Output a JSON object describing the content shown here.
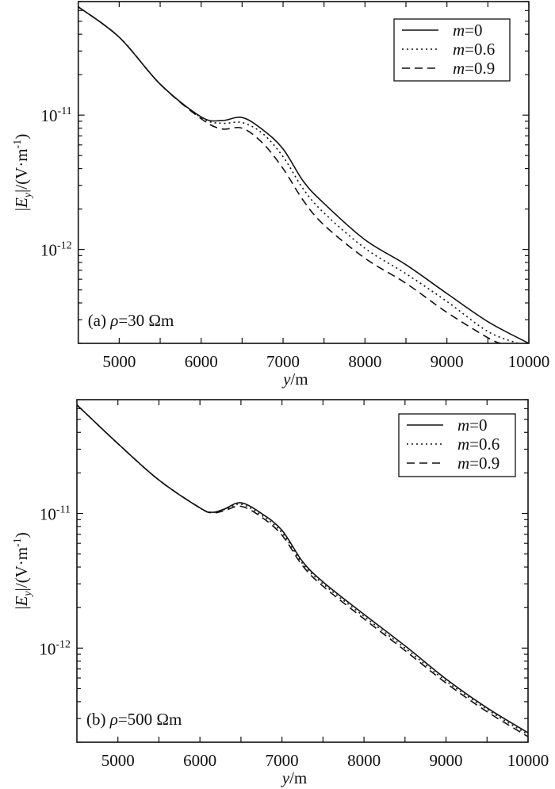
{
  "chart_data": [
    {
      "type": "line",
      "panel_label": {
        "prefix": "(a) ",
        "var": "ρ",
        "rest": "=30 Ωm"
      },
      "xlabel": {
        "var": "y",
        "rest": "/m"
      },
      "ylabel": {
        "pre": "|",
        "var": "E",
        "sub": "y",
        "mid": "|/(V·m",
        "sup": "-1",
        "post": ")"
      },
      "xlim": [
        4500,
        10000
      ],
      "ylim": [
        2e-13,
        7e-11
      ],
      "yscale": "log",
      "grid": false,
      "legend_position": "top-right",
      "xticks": [
        5000,
        6000,
        7000,
        8000,
        9000,
        10000
      ],
      "xtick_labels": [
        "5000",
        "6000",
        "7000",
        "8000",
        "9000",
        "10000"
      ],
      "yticks": [
        1e-11,
        1e-12
      ],
      "ytick_labels": [
        {
          "base": "10",
          "exp": "-11"
        },
        {
          "base": "10",
          "exp": "-12"
        }
      ],
      "series": [
        {
          "name": "m=0",
          "style": "solid",
          "x": [
            4500,
            5000,
            5500,
            6000,
            6250,
            6500,
            6750,
            7000,
            7250,
            7500,
            8000,
            8500,
            9000,
            9500,
            10000
          ],
          "y": [
            6.4e-11,
            3.8e-11,
            1.7e-11,
            9.7e-12,
            9.1e-12,
            9.6e-12,
            7.8e-12,
            5.6e-12,
            3.2e-12,
            2.2e-12,
            1.18e-12,
            7.7e-13,
            4.7e-13,
            2.9e-13,
            2e-13
          ]
        },
        {
          "name": "m=0.6",
          "style": "dotted",
          "x": [
            4500,
            5000,
            5500,
            6000,
            6250,
            6500,
            6750,
            7000,
            7250,
            7500,
            8000,
            8500,
            9000,
            9500,
            9870
          ],
          "y": [
            6.4e-11,
            3.8e-11,
            1.7e-11,
            9.6e-12,
            8.7e-12,
            8.8e-12,
            7.3e-12,
            4.9e-12,
            2.8e-12,
            1.87e-12,
            1.02e-12,
            6.6e-13,
            4.1e-13,
            2.45e-13,
            2e-13
          ]
        },
        {
          "name": "m=0.9",
          "style": "dashed",
          "x": [
            4500,
            5000,
            5500,
            6000,
            6250,
            6500,
            6750,
            7000,
            7250,
            7500,
            8000,
            8500,
            9000,
            9500,
            9650
          ],
          "y": [
            6.4e-11,
            3.8e-11,
            1.7e-11,
            9.4e-12,
            7.9e-12,
            8e-12,
            6.2e-12,
            4e-12,
            2.3e-12,
            1.52e-12,
            8.6e-13,
            5.6e-13,
            3.4e-13,
            2.2e-13,
            2e-13
          ]
        }
      ]
    },
    {
      "type": "line",
      "panel_label": {
        "prefix": "(b) ",
        "var": "ρ",
        "rest": "=500 Ωm"
      },
      "xlabel": {
        "var": "y",
        "rest": "/m"
      },
      "ylabel": {
        "pre": "|",
        "var": "E",
        "sub": "y",
        "mid": "|/(V·m",
        "sup": "-1",
        "post": ")"
      },
      "xlim": [
        4500,
        10000
      ],
      "ylim": [
        2e-13,
        7e-11
      ],
      "yscale": "log",
      "grid": false,
      "legend_position": "top-right",
      "xticks": [
        5000,
        6000,
        7000,
        8000,
        9000,
        10000
      ],
      "xtick_labels": [
        "5000",
        "6000",
        "7000",
        "8000",
        "9000",
        "10000"
      ],
      "yticks": [
        1e-11,
        1e-12
      ],
      "ytick_labels": [
        {
          "base": "10",
          "exp": "-11"
        },
        {
          "base": "10",
          "exp": "-12"
        }
      ],
      "series": [
        {
          "name": "m=0",
          "style": "solid",
          "x": [
            4500,
            5000,
            5500,
            6000,
            6150,
            6300,
            6500,
            6750,
            7000,
            7250,
            7500,
            8000,
            8500,
            9000,
            9500,
            10000
          ],
          "y": [
            6.4e-11,
            3.3e-11,
            1.77e-11,
            1.1e-11,
            1.02e-11,
            1.08e-11,
            1.2e-11,
            1e-11,
            7.5e-12,
            4.4e-12,
            3.1e-12,
            1.78e-12,
            1.04e-12,
            5.9e-13,
            3.6e-13,
            2.35e-13
          ]
        },
        {
          "name": "m=0.6",
          "style": "dotted",
          "x": [
            4500,
            5000,
            5500,
            6000,
            6150,
            6300,
            6500,
            6750,
            7000,
            7250,
            7500,
            8000,
            8500,
            9000,
            9500,
            10000
          ],
          "y": [
            6.4e-11,
            3.3e-11,
            1.77e-11,
            1.1e-11,
            1.02e-11,
            1.07e-11,
            1.17e-11,
            9.7e-12,
            7.2e-12,
            4.25e-12,
            3e-12,
            1.72e-12,
            1e-12,
            5.7e-13,
            3.5e-13,
            2.28e-13
          ]
        },
        {
          "name": "m=0.9",
          "style": "dashed",
          "x": [
            4500,
            5000,
            5500,
            6000,
            6150,
            6300,
            6500,
            6750,
            7000,
            7250,
            7500,
            8000,
            8500,
            9000,
            9500,
            10000
          ],
          "y": [
            6.4e-11,
            3.3e-11,
            1.77e-11,
            1.1e-11,
            1.01e-11,
            1.05e-11,
            1.13e-11,
            9.4e-12,
            6.9e-12,
            4.1e-12,
            2.88e-12,
            1.65e-12,
            9.6e-13,
            5.5e-13,
            3.37e-13,
            2.2e-13
          ]
        }
      ]
    }
  ]
}
